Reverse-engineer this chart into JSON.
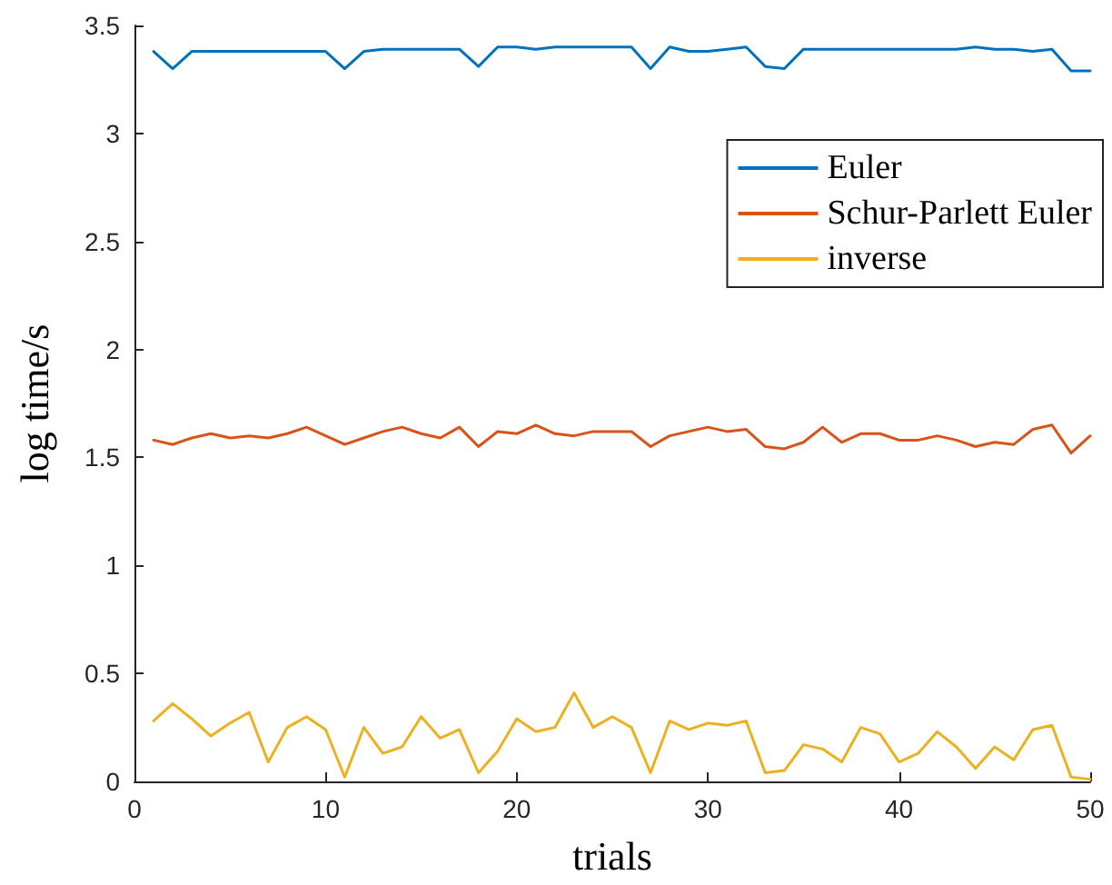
{
  "chart_data": {
    "type": "line",
    "xlabel": "trials",
    "ylabel": "log time/s",
    "x": [
      1,
      2,
      3,
      4,
      5,
      6,
      7,
      8,
      9,
      10,
      11,
      12,
      13,
      14,
      15,
      16,
      17,
      18,
      19,
      20,
      21,
      22,
      23,
      24,
      25,
      26,
      27,
      28,
      29,
      30,
      31,
      32,
      33,
      34,
      35,
      36,
      37,
      38,
      39,
      40,
      41,
      42,
      43,
      44,
      45,
      46,
      47,
      48,
      49,
      50
    ],
    "series": [
      {
        "name": "Euler",
        "color": "#0072bd",
        "values": [
          3.38,
          3.3,
          3.38,
          3.38,
          3.38,
          3.38,
          3.38,
          3.38,
          3.38,
          3.38,
          3.3,
          3.38,
          3.39,
          3.39,
          3.39,
          3.39,
          3.39,
          3.31,
          3.4,
          3.4,
          3.39,
          3.4,
          3.4,
          3.4,
          3.4,
          3.4,
          3.3,
          3.4,
          3.38,
          3.38,
          3.39,
          3.4,
          3.31,
          3.3,
          3.39,
          3.39,
          3.39,
          3.39,
          3.39,
          3.39,
          3.39,
          3.39,
          3.39,
          3.4,
          3.39,
          3.39,
          3.38,
          3.39,
          3.29,
          3.29
        ]
      },
      {
        "name": "Schur-Parlett Euler",
        "color": "#d95319",
        "values": [
          1.58,
          1.56,
          1.59,
          1.61,
          1.59,
          1.6,
          1.59,
          1.61,
          1.64,
          1.6,
          1.56,
          1.59,
          1.62,
          1.64,
          1.61,
          1.59,
          1.64,
          1.55,
          1.62,
          1.61,
          1.65,
          1.61,
          1.6,
          1.62,
          1.62,
          1.62,
          1.55,
          1.6,
          1.62,
          1.64,
          1.62,
          1.63,
          1.55,
          1.54,
          1.57,
          1.64,
          1.57,
          1.61,
          1.61,
          1.58,
          1.58,
          1.6,
          1.58,
          1.55,
          1.57,
          1.56,
          1.63,
          1.65,
          1.52,
          1.6
        ]
      },
      {
        "name": "inverse",
        "color": "#edb120",
        "values": [
          0.28,
          0.36,
          0.29,
          0.21,
          0.27,
          0.32,
          0.09,
          0.25,
          0.3,
          0.24,
          0.02,
          0.25,
          0.13,
          0.16,
          0.3,
          0.2,
          0.24,
          0.04,
          0.14,
          0.29,
          0.23,
          0.25,
          0.41,
          0.25,
          0.3,
          0.25,
          0.04,
          0.28,
          0.24,
          0.27,
          0.26,
          0.28,
          0.04,
          0.05,
          0.17,
          0.15,
          0.09,
          0.25,
          0.22,
          0.09,
          0.13,
          0.23,
          0.16,
          0.06,
          0.16,
          0.1,
          0.24,
          0.26,
          0.02,
          0.01
        ]
      }
    ],
    "xlim": [
      0,
      50
    ],
    "xticks": [
      0,
      10,
      20,
      30,
      40,
      50
    ],
    "ylim": [
      0,
      3.5
    ],
    "yticks": [
      0,
      0.5,
      1,
      1.5,
      2,
      2.5,
      3,
      3.5
    ],
    "grid": false,
    "legend": "top right",
    "marker": "none",
    "line_style": "solid"
  }
}
